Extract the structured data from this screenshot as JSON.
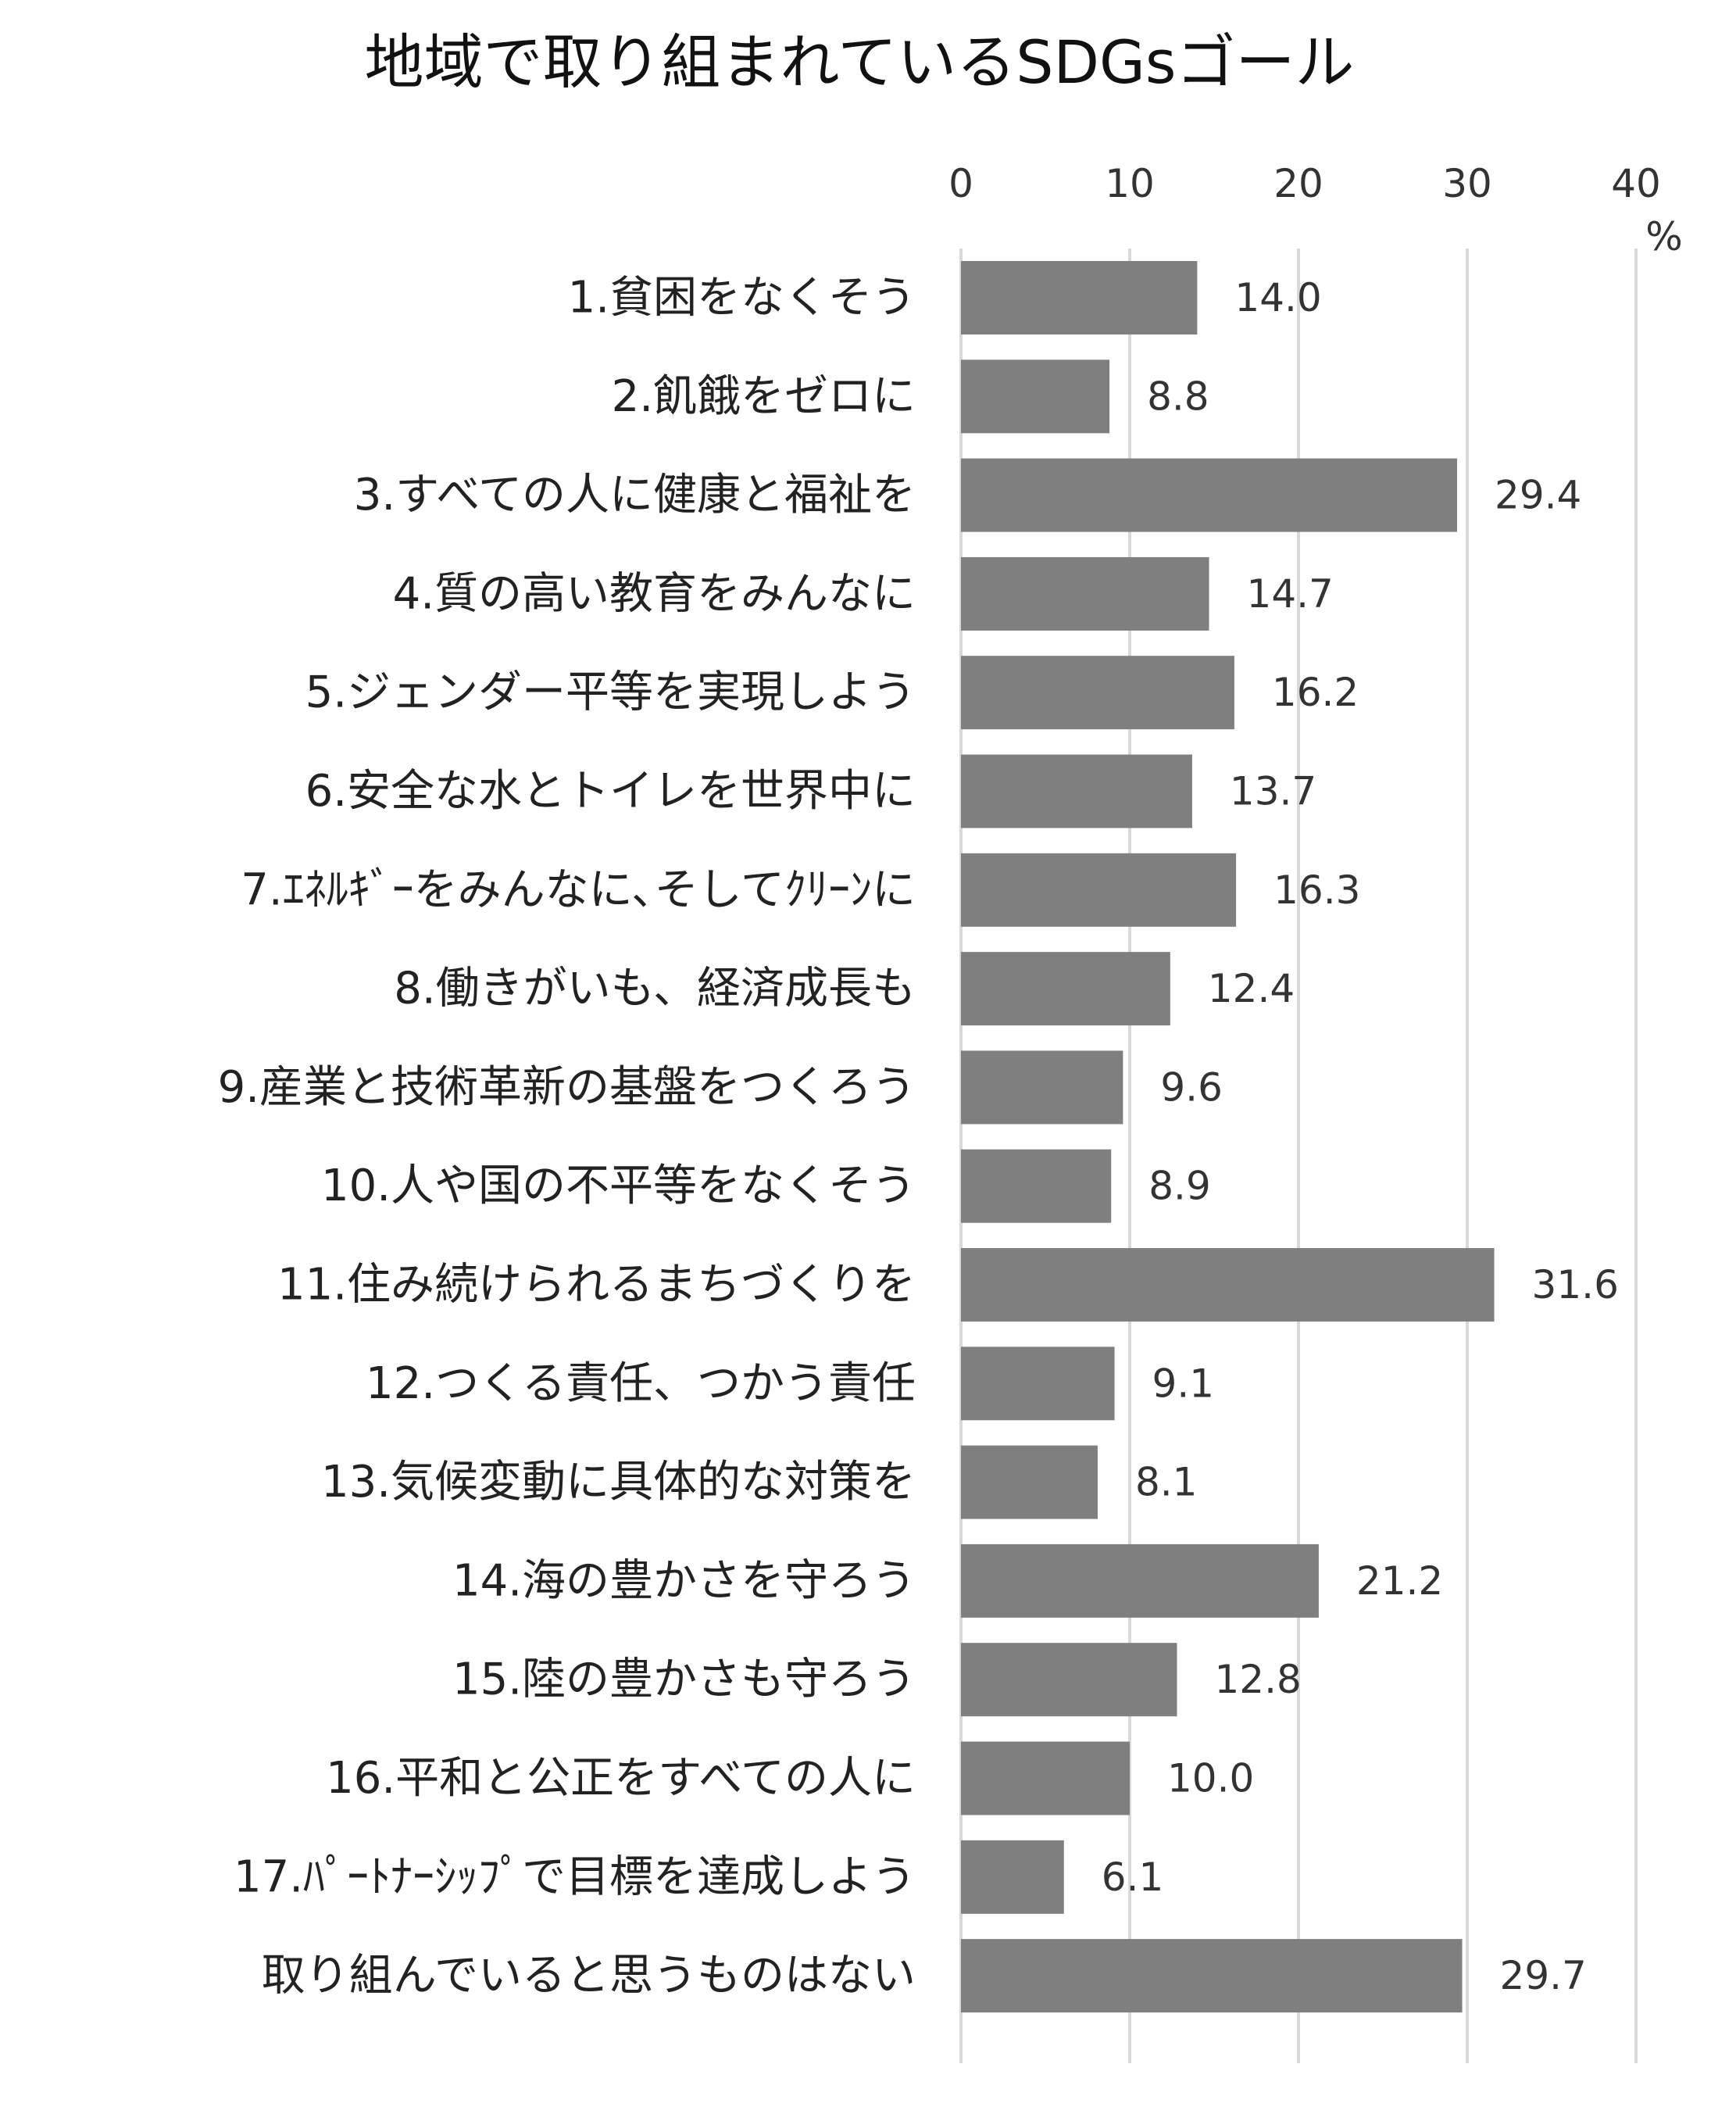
{
  "chart_data": {
    "type": "bar",
    "orientation": "horizontal",
    "title": "地域で取り組まれているSDGsゴール",
    "unit": "%",
    "xlim": [
      0,
      40
    ],
    "ticks": [
      "0",
      "10",
      "20",
      "30",
      "40"
    ],
    "tick_values": [
      0,
      10,
      20,
      30,
      40
    ],
    "grid": true,
    "bar_color": "#7f7f7f",
    "categories": [
      "1.貧困をなくそう",
      "2.飢餓をゼロに",
      "3.すべての人に健康と福祉を",
      "4.質の高い教育をみんなに",
      "5.ジェンダー平等を実現しよう",
      "6.安全な水とトイレを世界中に",
      "7.ｴﾈﾙｷﾞｰをみんなに､そしてｸﾘｰﾝに",
      "8.働きがいも、経済成長も",
      "9.産業と技術革新の基盤をつくろう",
      "10.人や国の不平等をなくそう",
      "11.住み続けられるまちづくりを",
      "12.つくる責任、つかう責任",
      "13.気候変動に具体的な対策を",
      "14.海の豊かさを守ろう",
      "15.陸の豊かさも守ろう",
      "16.平和と公正をすべての人に",
      "17.ﾊﾟｰﾄﾅｰｼｯﾌﾟで目標を達成しよう",
      "取り組んでいると思うものはない"
    ],
    "values": [
      14.0,
      8.8,
      29.4,
      14.7,
      16.2,
      13.7,
      16.3,
      12.4,
      9.6,
      8.9,
      31.6,
      9.1,
      8.1,
      21.2,
      12.8,
      10.0,
      6.1,
      29.7
    ],
    "value_labels": [
      "14.0",
      "8.8",
      "29.4",
      "14.7",
      "16.2",
      "13.7",
      "16.3",
      "12.4",
      "9.6",
      "8.9",
      "31.6",
      "9.1",
      "8.1",
      "21.2",
      "12.8",
      "10.0",
      "6.1",
      "29.7"
    ]
  }
}
